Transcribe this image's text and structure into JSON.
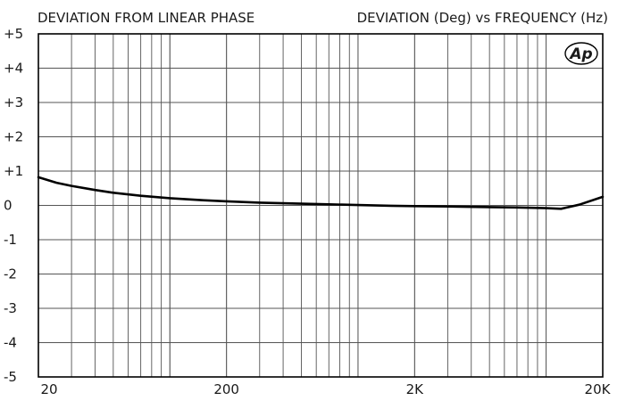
{
  "chart_data": {
    "type": "line",
    "title": "DEVIATION FROM LINEAR PHASE",
    "subtitle": "DEVIATION (Deg) vs FREQUENCY (Hz)",
    "x_scale": "log",
    "xlim": [
      20,
      20000
    ],
    "ylim": [
      -5,
      5
    ],
    "x_tick_values": [
      20,
      200,
      2000,
      20000
    ],
    "x_tick_labels": [
      "20",
      "200",
      "2K",
      "20K"
    ],
    "y_tick_values": [
      5,
      4,
      3,
      2,
      1,
      0,
      -1,
      -2,
      -3,
      -4,
      -5
    ],
    "y_tick_labels": [
      "+5",
      "+4",
      "+3",
      "+2",
      "+1",
      "0",
      "-1",
      "-2",
      "-3",
      "-4",
      "-5"
    ],
    "grid": true,
    "series": [
      {
        "color": "#000000",
        "x": [
          20,
          25,
          30,
          40,
          50,
          70,
          100,
          150,
          200,
          300,
          500,
          700,
          1000,
          1500,
          2000,
          3000,
          5000,
          7000,
          10000,
          12000,
          15000,
          20000
        ],
        "y": [
          0.82,
          0.66,
          0.57,
          0.45,
          0.37,
          0.28,
          0.21,
          0.15,
          0.12,
          0.08,
          0.05,
          0.03,
          0.01,
          -0.01,
          -0.02,
          -0.03,
          -0.05,
          -0.06,
          -0.08,
          -0.1,
          0.02,
          0.25
        ]
      }
    ],
    "logo": "Ap"
  }
}
